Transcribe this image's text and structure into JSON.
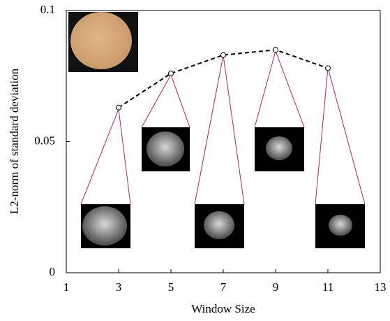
{
  "chart_data": {
    "type": "line",
    "x_label": "Window Size",
    "y_label": "L2-norm of standard deviation",
    "x": [
      3,
      5,
      7,
      9,
      11
    ],
    "series": [
      {
        "color": "#000000",
        "values": [
          0.063,
          0.076,
          0.083,
          0.085,
          0.078
        ]
      }
    ],
    "xlim": [
      1,
      13
    ],
    "xticks": [
      1,
      3,
      5,
      7,
      9,
      11,
      13
    ],
    "ylim": [
      0,
      0.1
    ],
    "yticks": [
      0,
      0.05,
      0.1
    ]
  }
}
